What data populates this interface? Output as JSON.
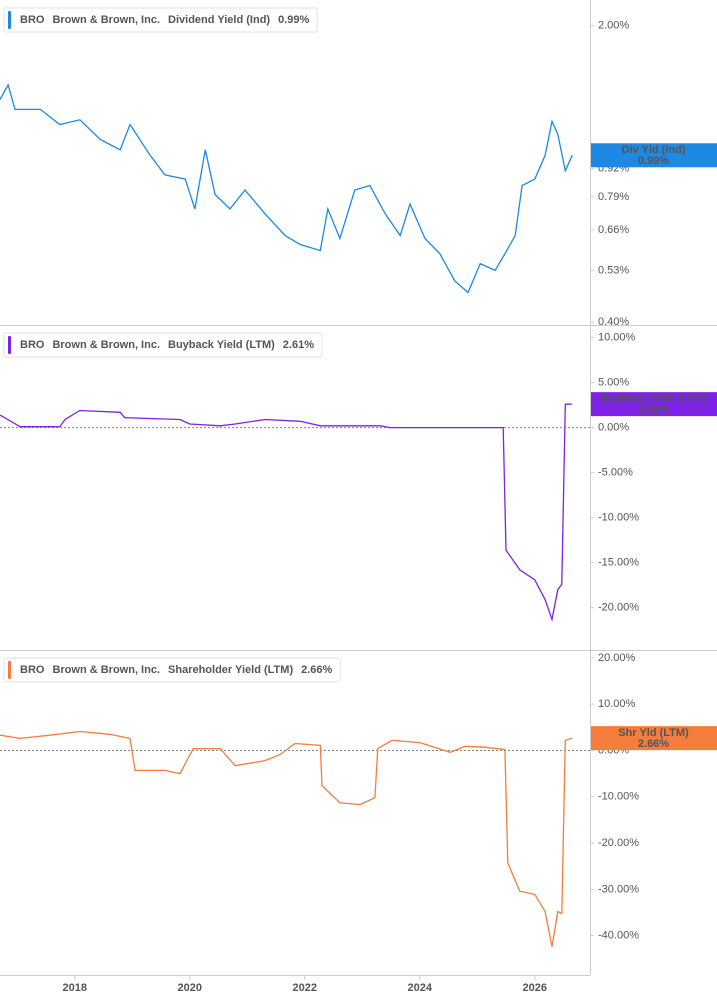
{
  "chart_data": [
    {
      "type": "line",
      "ticker": "BRO",
      "company": "Brown & Brown, Inc.",
      "legend_value": "0.99%",
      "tag": "Div Yld (Ind)",
      "log": true,
      "xlim": [
        2016.7,
        2026.96
      ],
      "ylim": [
        0.394,
        2.3
      ],
      "yticks": [
        {
          "value": 0.4,
          "label": "0.40%"
        },
        {
          "value": 0.53,
          "label": "0.53%"
        },
        {
          "value": 0.66,
          "label": "0.66%"
        },
        {
          "value": 0.79,
          "label": "0.79%"
        },
        {
          "value": 0.92,
          "label": "0.92%"
        },
        {
          "value": 2,
          "label": "2.00%"
        }
      ],
      "x": [
        2016.7,
        2016.84,
        2016.96,
        2017.4,
        2017.74,
        2018.09,
        2018.44,
        2018.79,
        2018.96,
        2019.31,
        2019.57,
        2019.92,
        2020.09,
        2020.27,
        2020.44,
        2020.7,
        2020.96,
        2021.31,
        2021.66,
        2021.92,
        2022.27,
        2022.4,
        2022.61,
        2022.87,
        2023.13,
        2023.4,
        2023.66,
        2023.83,
        2024.09,
        2024.35,
        2024.61,
        2024.84,
        2025.05,
        2025.31,
        2025.48,
        2025.66,
        2025.78,
        2026.0,
        2026.18,
        2026.3,
        2026.4,
        2026.53,
        2026.65
      ],
      "series": [
        {
          "name": "Dividend Yield (Ind)",
          "color": "#1e88e5",
          "values": [
            1.34,
            1.45,
            1.27,
            1.27,
            1.17,
            1.2,
            1.08,
            1.02,
            1.17,
            0.99,
            0.89,
            0.87,
            0.74,
            1.02,
            0.8,
            0.74,
            0.82,
            0.72,
            0.64,
            0.61,
            0.59,
            0.74,
            0.63,
            0.82,
            0.84,
            0.72,
            0.64,
            0.76,
            0.63,
            0.58,
            0.5,
            0.47,
            0.55,
            0.53,
            0.58,
            0.64,
            0.84,
            0.87,
            0.99,
            1.19,
            1.11,
            0.91,
            0.99
          ]
        }
      ]
    },
    {
      "type": "line",
      "ticker": "BRO",
      "company": "Brown & Brown, Inc.",
      "legend_value": "2.61%",
      "tag": "Buyback Yield (LTM)",
      "zero_line": true,
      "xlim": [
        2016.7,
        2026.96
      ],
      "ylim": [
        -24.7,
        11.4
      ],
      "yticks": [
        {
          "value": -20,
          "label": "-20.00%"
        },
        {
          "value": -15,
          "label": "-15.00%"
        },
        {
          "value": -10,
          "label": "-10.00%"
        },
        {
          "value": -5,
          "label": "-5.00%"
        },
        {
          "value": 0,
          "label": "0.00%"
        },
        {
          "value": 5,
          "label": "5.00%"
        },
        {
          "value": 10,
          "label": "10.00%"
        }
      ],
      "x": [
        2016.7,
        2017.05,
        2017.74,
        2017.83,
        2018.09,
        2018.79,
        2018.87,
        2019.83,
        2020.0,
        2020.53,
        2020.79,
        2021.31,
        2021.92,
        2022.27,
        2023.31,
        2023.48,
        2025.45,
        2025.5,
        2025.74,
        2026.0,
        2026.18,
        2026.3,
        2026.4,
        2026.47,
        2026.53,
        2026.65
      ],
      "series": [
        {
          "name": "Buyback Yield (LTM)",
          "color": "#7e22e6",
          "values": [
            1.4,
            0.1,
            0.1,
            0.9,
            1.9,
            1.7,
            1.1,
            0.9,
            0.4,
            0.2,
            0.4,
            0.9,
            0.7,
            0.2,
            0.2,
            0,
            0,
            -13.6,
            -15.8,
            -16.9,
            -19.1,
            -21.3,
            -18.0,
            -17.4,
            2.6,
            2.61
          ]
        }
      ]
    },
    {
      "type": "line",
      "ticker": "BRO",
      "company": "Brown & Brown, Inc.",
      "legend_value": "2.66%",
      "tag": "Shr Yld (LTM)",
      "zero_line": true,
      "xlim": [
        2016.7,
        2026.96
      ],
      "ylim": [
        -48.5,
        21.7
      ],
      "xticks": [
        2018,
        2020,
        2022,
        2024,
        2026
      ],
      "yticks": [
        {
          "value": -40,
          "label": "-40.00%"
        },
        {
          "value": -30,
          "label": "-30.00%"
        },
        {
          "value": -20,
          "label": "-20.00%"
        },
        {
          "value": -10,
          "label": "-10.00%"
        },
        {
          "value": 0,
          "label": "0.00%"
        },
        {
          "value": 10,
          "label": "10.00%"
        },
        {
          "value": 20,
          "label": "20.00%"
        }
      ],
      "x": [
        2016.7,
        2017.05,
        2017.57,
        2018.09,
        2018.61,
        2018.96,
        2019.05,
        2019.57,
        2019.83,
        2020.06,
        2020.53,
        2020.79,
        2021.31,
        2021.57,
        2021.83,
        2022.27,
        2022.3,
        2022.61,
        2022.96,
        2023.22,
        2023.27,
        2023.52,
        2024.0,
        2024.53,
        2024.79,
        2025.13,
        2025.48,
        2025.53,
        2025.74,
        2026.0,
        2026.18,
        2026.3,
        2026.4,
        2026.47,
        2026.53,
        2026.65
      ],
      "series": [
        {
          "name": "Shareholder Yield (LTM)",
          "color": "#f47c3c",
          "values": [
            3.3,
            2.6,
            3.3,
            4.1,
            3.5,
            2.6,
            -4.3,
            -4.3,
            -5.0,
            0.4,
            0.4,
            -3.3,
            -2.2,
            -0.9,
            1.5,
            1.1,
            -7.6,
            -11.3,
            -11.7,
            -10.2,
            0.4,
            2.2,
            1.7,
            -0.4,
            0.9,
            0.7,
            0.2,
            -24.3,
            -30.4,
            -31.1,
            -34.8,
            -42.4,
            -34.8,
            -35.2,
            2.2,
            2.66
          ]
        }
      ]
    }
  ]
}
